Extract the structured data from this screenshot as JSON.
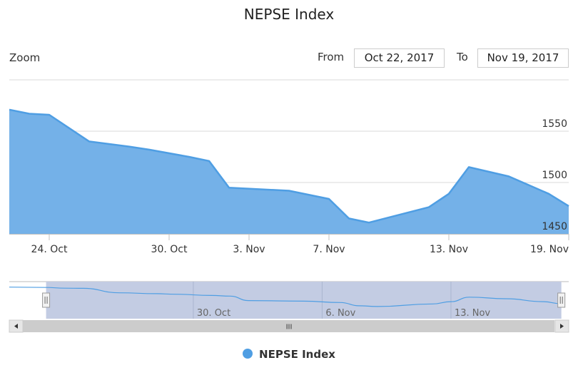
{
  "title": "NEPSE Index",
  "range_selector": {
    "zoom_label": "Zoom",
    "from_label": "From",
    "from_value": "Oct 22, 2017",
    "to_label": "To",
    "to_value": "Nov 19, 2017"
  },
  "colors": {
    "series": "#4f9ee3",
    "series_fill": "#74b1e8",
    "navigator_mask": "#c3cce3",
    "scrollbar": "#cccccc"
  },
  "navigator": {
    "scrollbar_grip": "III"
  },
  "chart_data": {
    "type": "area",
    "series": [
      {
        "name": "NEPSE Index",
        "points": [
          [
            "2017-10-22",
            1571
          ],
          [
            "2017-10-23",
            1567
          ],
          [
            "2017-10-24",
            1566
          ],
          [
            "2017-10-26",
            1540
          ],
          [
            "2017-10-28",
            1535
          ],
          [
            "2017-10-29",
            1532
          ],
          [
            "2017-10-31",
            1525
          ],
          [
            "2017-11-01",
            1521
          ],
          [
            "2017-11-02",
            1495
          ],
          [
            "2017-11-05",
            1492
          ],
          [
            "2017-11-07",
            1484
          ],
          [
            "2017-11-08",
            1465
          ],
          [
            "2017-11-09",
            1461
          ],
          [
            "2017-11-12",
            1476
          ],
          [
            "2017-11-13",
            1489
          ],
          [
            "2017-11-14",
            1515
          ],
          [
            "2017-11-16",
            1506
          ],
          [
            "2017-11-18",
            1489
          ],
          [
            "2017-11-19",
            1477
          ]
        ]
      }
    ],
    "x_ticks": [
      "24. Oct",
      "30. Oct",
      "3. Nov",
      "7. Nov",
      "13. Nov",
      "19. Nov"
    ],
    "y_ticks": [
      1450,
      1500,
      1550
    ],
    "ylim": [
      1450,
      1600
    ],
    "navigator_ticks": [
      "30. Oct",
      "6. Nov",
      "13. Nov"
    ],
    "legend_position": "bottom-center",
    "grid": "horizontal"
  }
}
